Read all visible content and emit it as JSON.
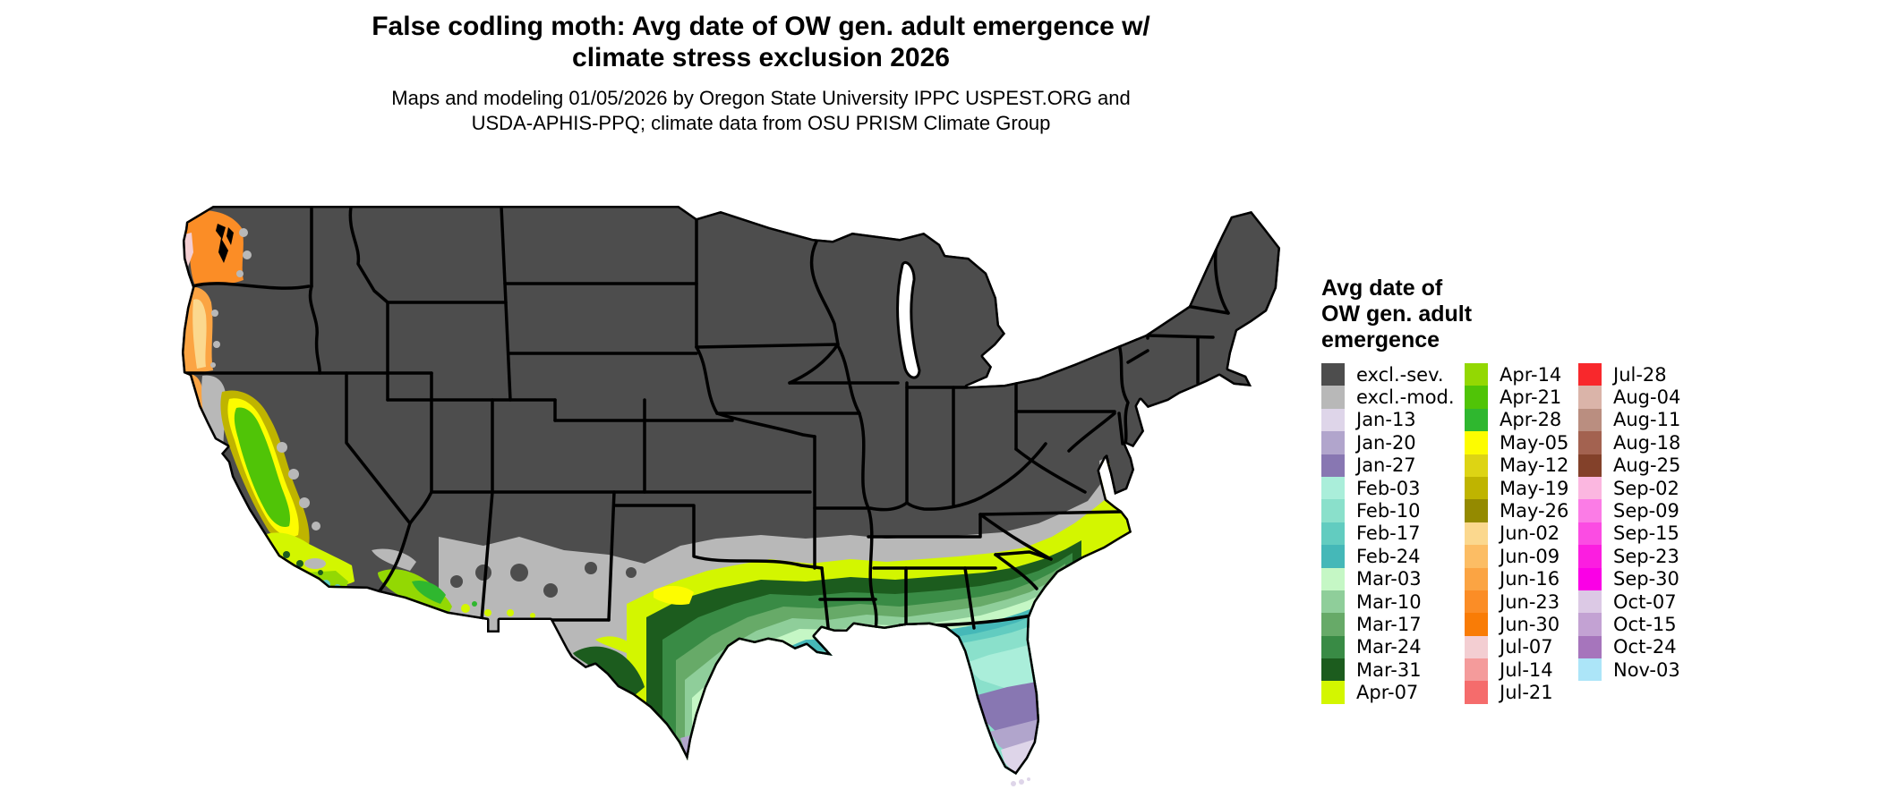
{
  "header": {
    "title_line1": "False codling moth: Avg date of OW gen. adult emergence w/",
    "title_line2": "climate stress exclusion 2026",
    "subtitle_line1": "Maps and modeling 01/05/2026 by Oregon State University IPPC USPEST.ORG and",
    "subtitle_line2": "USDA-APHIS-PPQ; climate data from OSU PRISM Climate Group"
  },
  "legend": {
    "title_lines": [
      "Avg date of",
      "OW gen. adult",
      "emergence"
    ],
    "columns": [
      [
        "excl.-sev.",
        "excl.-mod.",
        "Jan-13",
        "Jan-20",
        "Jan-27",
        "Feb-03",
        "Feb-10",
        "Feb-17",
        "Feb-24",
        "Mar-03",
        "Mar-10",
        "Mar-17",
        "Mar-24",
        "Mar-31",
        "Apr-07"
      ],
      [
        "Apr-14",
        "Apr-21",
        "Apr-28",
        "May-05",
        "May-12",
        "May-19",
        "May-26",
        "Jun-02",
        "Jun-09",
        "Jun-16",
        "Jun-23",
        "Jun-30",
        "Jul-07",
        "Jul-14",
        "Jul-21"
      ],
      [
        "Jul-28",
        "Aug-04",
        "Aug-11",
        "Aug-18",
        "Aug-25",
        "Sep-02",
        "Sep-09",
        "Sep-15",
        "Sep-23",
        "Sep-30",
        "Oct-07",
        "Oct-15",
        "Oct-24",
        "Nov-03"
      ]
    ]
  },
  "map": {
    "region": "Contiguous United States",
    "palette": {
      "excl.-sev.": "#4d4d4d",
      "excl.-mod.": "#b8b8b8",
      "Jan-13": "#ded5e9",
      "Jan-20": "#b1a5cc",
      "Jan-27": "#8877b2",
      "Feb-03": "#aaeeda",
      "Feb-10": "#8ae0cb",
      "Feb-17": "#62ccc0",
      "Feb-24": "#45b8b8",
      "Mar-03": "#c5f7c5",
      "Mar-10": "#8fce9a",
      "Mar-17": "#67aa68",
      "Mar-24": "#398b45",
      "Mar-31": "#1c5c1e",
      "Apr-07": "#d3f600",
      "Apr-14": "#93d803",
      "Apr-21": "#50c407",
      "Apr-28": "#2fb72f",
      "May-05": "#fdfc00",
      "May-12": "#ddd414",
      "May-19": "#bfb400",
      "May-26": "#948a00",
      "Jun-02": "#fbd88e",
      "Jun-09": "#fcbd64",
      "Jun-16": "#fba443",
      "Jun-23": "#fb8d26",
      "Jun-30": "#f97c06",
      "Jul-07": "#f3ced2",
      "Jul-14": "#f49b9b",
      "Jul-21": "#f56c6c",
      "Jul-28": "#f8282c",
      "Aug-04": "#dab4a9",
      "Aug-11": "#ba8e80",
      "Aug-18": "#a36250",
      "Aug-25": "#83412a",
      "Sep-02": "#fbb7e0",
      "Sep-09": "#fb7ce6",
      "Sep-15": "#fb4ce3",
      "Sep-23": "#fb1ee0",
      "Sep-30": "#fa00e6",
      "Oct-07": "#dcc9e5",
      "Oct-15": "#c3a2d3",
      "Oct-24": "#a675bc",
      "Nov-03": "#ace5f8",
      "water": "#ffffff",
      "sound": "#000000"
    },
    "border_color": "#000000"
  }
}
